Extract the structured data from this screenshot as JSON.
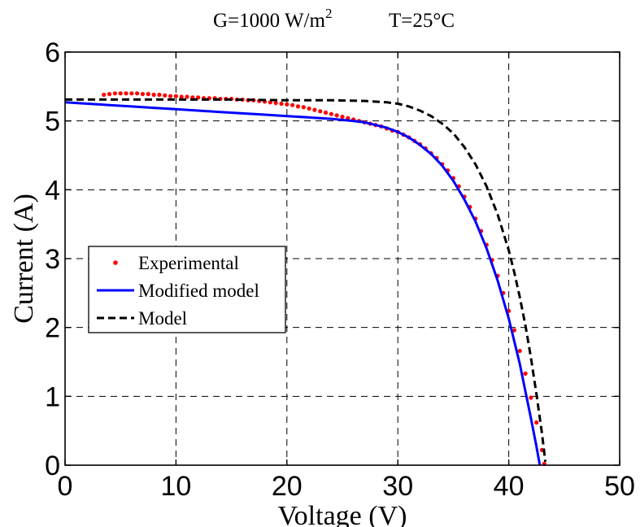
{
  "chart_data": {
    "type": "line",
    "title": "G=1000 W/m",
    "title_sup": "2",
    "title_temp": "T=25°C",
    "xlabel": "Voltage (V)",
    "ylabel": "Current (A)",
    "xlim": [
      0,
      50
    ],
    "ylim": [
      0,
      6
    ],
    "xticks": [
      0,
      10,
      20,
      30,
      40,
      50
    ],
    "yticks": [
      0,
      1,
      2,
      3,
      4,
      5,
      6
    ],
    "x_tick_labels": [
      "0",
      "10",
      "20",
      "30",
      "40",
      "50"
    ],
    "y_tick_labels": [
      "0",
      "1",
      "2",
      "3",
      "4",
      "5",
      "6"
    ],
    "grid": true,
    "legend_position": "left",
    "series": [
      {
        "name": "Experimental",
        "style": "dots",
        "color": "#ff0000",
        "points": [
          [
            3.5,
            5.38
          ],
          [
            4,
            5.39
          ],
          [
            4.5,
            5.4
          ],
          [
            5,
            5.4
          ],
          [
            5.5,
            5.4
          ],
          [
            6,
            5.4
          ],
          [
            6.5,
            5.4
          ],
          [
            7,
            5.39
          ],
          [
            7.5,
            5.39
          ],
          [
            8,
            5.38
          ],
          [
            8.5,
            5.38
          ],
          [
            9,
            5.37
          ],
          [
            9.5,
            5.36
          ],
          [
            10,
            5.36
          ],
          [
            10.5,
            5.35
          ],
          [
            11,
            5.35
          ],
          [
            11.5,
            5.34
          ],
          [
            12,
            5.34
          ],
          [
            12.5,
            5.33
          ],
          [
            13,
            5.33
          ],
          [
            13.5,
            5.33
          ],
          [
            14,
            5.32
          ],
          [
            14.5,
            5.32
          ],
          [
            15,
            5.32
          ],
          [
            15.5,
            5.31
          ],
          [
            16,
            5.31
          ],
          [
            16.5,
            5.3
          ],
          [
            17,
            5.3
          ],
          [
            17.5,
            5.29
          ],
          [
            18,
            5.28
          ],
          [
            18.5,
            5.27
          ],
          [
            19,
            5.26
          ],
          [
            19.5,
            5.25
          ],
          [
            20,
            5.24
          ],
          [
            20.5,
            5.23
          ],
          [
            21,
            5.21
          ],
          [
            21.5,
            5.2
          ],
          [
            22,
            5.18
          ],
          [
            22.5,
            5.16
          ],
          [
            23,
            5.14
          ],
          [
            23.5,
            5.12
          ],
          [
            24,
            5.1
          ],
          [
            24.5,
            5.08
          ],
          [
            25,
            5.06
          ],
          [
            25.5,
            5.04
          ],
          [
            26,
            5.02
          ],
          [
            26.5,
            5.0
          ],
          [
            27,
            4.98
          ],
          [
            27.5,
            4.96
          ],
          [
            28,
            4.94
          ],
          [
            28.5,
            4.92
          ],
          [
            29,
            4.89
          ],
          [
            29.5,
            4.86
          ],
          [
            30,
            4.84
          ],
          [
            30.5,
            4.8
          ],
          [
            31,
            4.76
          ],
          [
            31.5,
            4.71
          ],
          [
            32,
            4.66
          ],
          [
            32.5,
            4.6
          ],
          [
            33,
            4.53
          ],
          [
            33.5,
            4.46
          ],
          [
            34,
            4.37
          ],
          [
            34.5,
            4.28
          ],
          [
            35,
            4.17
          ],
          [
            35.5,
            4.05
          ],
          [
            36,
            3.9
          ],
          [
            36.5,
            3.75
          ],
          [
            37,
            3.58
          ],
          [
            37.5,
            3.4
          ],
          [
            38,
            3.2
          ],
          [
            38.5,
            2.98
          ],
          [
            39,
            2.75
          ],
          [
            39.5,
            2.5
          ],
          [
            40,
            2.24
          ],
          [
            40.5,
            1.96
          ],
          [
            41,
            1.66
          ],
          [
            41.5,
            1.33
          ],
          [
            42,
            0.98
          ],
          [
            42.5,
            0.62
          ],
          [
            43,
            0.22
          ],
          [
            43.2,
            0.02
          ]
        ]
      },
      {
        "name": "Modified model",
        "style": "solid",
        "color": "#0000ff",
        "points": [
          [
            0,
            5.27
          ],
          [
            2,
            5.25
          ],
          [
            4,
            5.23
          ],
          [
            6,
            5.21
          ],
          [
            8,
            5.19
          ],
          [
            10,
            5.17
          ],
          [
            12,
            5.15
          ],
          [
            14,
            5.13
          ],
          [
            16,
            5.11
          ],
          [
            18,
            5.09
          ],
          [
            20,
            5.07
          ],
          [
            22,
            5.05
          ],
          [
            24,
            5.03
          ],
          [
            26,
            5.0
          ],
          [
            27,
            4.98
          ],
          [
            28,
            4.94
          ],
          [
            29,
            4.9
          ],
          [
            30,
            4.84
          ],
          [
            31,
            4.76
          ],
          [
            32,
            4.65
          ],
          [
            33,
            4.52
          ],
          [
            34,
            4.35
          ],
          [
            35,
            4.13
          ],
          [
            36,
            3.86
          ],
          [
            37,
            3.54
          ],
          [
            38,
            3.15
          ],
          [
            39,
            2.68
          ],
          [
            40,
            2.13
          ],
          [
            41,
            1.47
          ],
          [
            42,
            0.68
          ],
          [
            42.5,
            0.27
          ],
          [
            42.8,
            0.0
          ]
        ]
      },
      {
        "name": "Model",
        "style": "dashed",
        "color": "#000000",
        "points": [
          [
            0,
            5.31
          ],
          [
            5,
            5.31
          ],
          [
            10,
            5.31
          ],
          [
            15,
            5.31
          ],
          [
            20,
            5.3
          ],
          [
            24,
            5.3
          ],
          [
            27,
            5.29
          ],
          [
            29,
            5.27
          ],
          [
            30,
            5.25
          ],
          [
            31,
            5.21
          ],
          [
            32,
            5.15
          ],
          [
            33,
            5.07
          ],
          [
            34,
            4.96
          ],
          [
            35,
            4.82
          ],
          [
            36,
            4.62
          ],
          [
            37,
            4.37
          ],
          [
            38,
            4.05
          ],
          [
            39,
            3.64
          ],
          [
            40,
            3.12
          ],
          [
            40.5,
            2.8
          ],
          [
            41,
            2.44
          ],
          [
            41.5,
            2.03
          ],
          [
            42,
            1.56
          ],
          [
            42.5,
            1.03
          ],
          [
            43,
            0.46
          ],
          [
            43.3,
            0.05
          ]
        ]
      }
    ]
  }
}
